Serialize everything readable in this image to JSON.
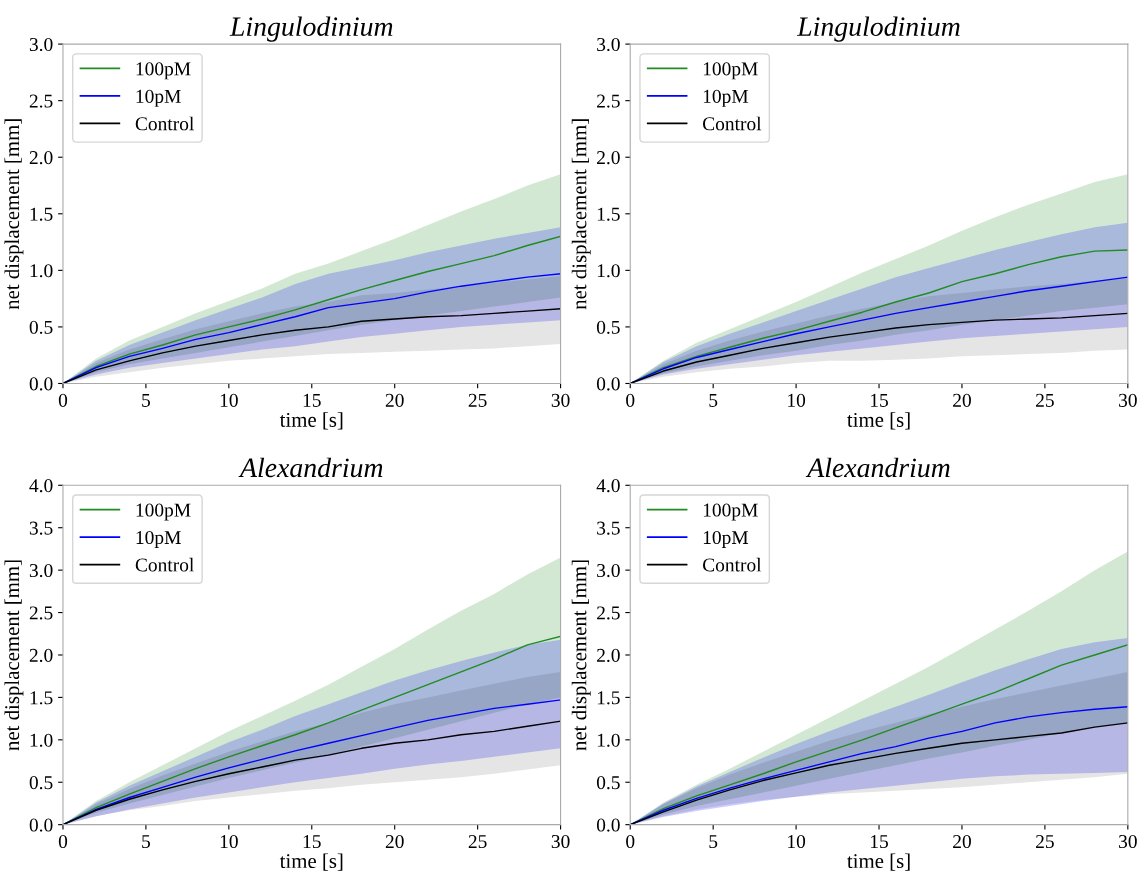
{
  "chart_data": [
    {
      "type": "line",
      "title": "Lingulodinium",
      "xlabel": "time [s]",
      "ylabel": "net displacement [mm]",
      "x": [
        0,
        2,
        4,
        6,
        8,
        10,
        12,
        14,
        16,
        18,
        20,
        22,
        24,
        26,
        28,
        30
      ],
      "xlim": [
        0,
        30
      ],
      "xticks": [
        0,
        5,
        10,
        15,
        20,
        25,
        30
      ],
      "ylim": [
        0,
        3
      ],
      "yticks": [
        {
          "value": 0,
          "label": "0.0"
        },
        0.5,
        {
          "value": 1,
          "label": "1.0"
        },
        1.5,
        {
          "value": 2,
          "label": "2.0"
        },
        2.5,
        {
          "value": 3,
          "label": "3.0"
        }
      ],
      "grid": false,
      "legend": "top left",
      "marker": "none",
      "line_style": "solid",
      "series": [
        {
          "name": "100pM",
          "color": "#228b22",
          "values": [
            0,
            0.15,
            0.26,
            0.34,
            0.43,
            0.5,
            0.57,
            0.65,
            0.74,
            0.83,
            0.91,
            0.99,
            1.06,
            1.13,
            1.22,
            1.3
          ],
          "lower": [
            0,
            0.1,
            0.17,
            0.22,
            0.27,
            0.32,
            0.37,
            0.42,
            0.47,
            0.52,
            0.56,
            0.6,
            0.64,
            0.68,
            0.72,
            0.76
          ],
          "upper": [
            0,
            0.22,
            0.38,
            0.5,
            0.62,
            0.73,
            0.84,
            0.97,
            1.06,
            1.17,
            1.28,
            1.4,
            1.52,
            1.63,
            1.75,
            1.85
          ]
        },
        {
          "name": "10pM",
          "color": "#0000ff",
          "values": [
            0,
            0.14,
            0.24,
            0.31,
            0.39,
            0.45,
            0.52,
            0.59,
            0.67,
            0.71,
            0.75,
            0.81,
            0.86,
            0.9,
            0.94,
            0.97
          ],
          "lower": [
            0,
            0.08,
            0.14,
            0.18,
            0.22,
            0.26,
            0.3,
            0.33,
            0.37,
            0.41,
            0.44,
            0.47,
            0.5,
            0.52,
            0.54,
            0.56
          ],
          "upper": [
            0,
            0.2,
            0.34,
            0.45,
            0.56,
            0.66,
            0.76,
            0.88,
            0.97,
            1.03,
            1.09,
            1.16,
            1.22,
            1.28,
            1.33,
            1.38
          ]
        },
        {
          "name": "Control",
          "color": "#000000",
          "values": [
            0,
            0.12,
            0.2,
            0.27,
            0.33,
            0.38,
            0.43,
            0.47,
            0.5,
            0.55,
            0.57,
            0.59,
            0.6,
            0.62,
            0.64,
            0.66
          ],
          "lower": [
            0,
            0.06,
            0.1,
            0.14,
            0.17,
            0.2,
            0.22,
            0.24,
            0.26,
            0.27,
            0.28,
            0.29,
            0.3,
            0.31,
            0.33,
            0.35
          ],
          "upper": [
            0,
            0.18,
            0.3,
            0.39,
            0.48,
            0.55,
            0.62,
            0.68,
            0.72,
            0.78,
            0.8,
            0.83,
            0.86,
            0.89,
            0.92,
            0.95
          ]
        }
      ]
    },
    {
      "type": "line",
      "title": "Lingulodinium",
      "xlabel": "time [s]",
      "ylabel": "net displacement [mm]",
      "x": [
        0,
        2,
        4,
        6,
        8,
        10,
        12,
        14,
        16,
        18,
        20,
        22,
        24,
        26,
        28,
        30
      ],
      "xlim": [
        0,
        30
      ],
      "xticks": [
        0,
        5,
        10,
        15,
        20,
        25,
        30
      ],
      "ylim": [
        0,
        3
      ],
      "yticks": [
        {
          "value": 0,
          "label": "0.0"
        },
        0.5,
        {
          "value": 1,
          "label": "1.0"
        },
        1.5,
        {
          "value": 2,
          "label": "2.0"
        },
        2.5,
        {
          "value": 3,
          "label": "3.0"
        }
      ],
      "grid": false,
      "legend": "top left",
      "marker": "none",
      "line_style": "solid",
      "series": [
        {
          "name": "100pM",
          "color": "#228b22",
          "values": [
            0,
            0.14,
            0.24,
            0.32,
            0.4,
            0.47,
            0.55,
            0.63,
            0.72,
            0.8,
            0.9,
            0.97,
            1.05,
            1.12,
            1.17,
            1.18
          ],
          "lower": [
            0,
            0.09,
            0.15,
            0.2,
            0.25,
            0.29,
            0.34,
            0.38,
            0.43,
            0.47,
            0.52,
            0.56,
            0.6,
            0.64,
            0.67,
            0.7
          ],
          "upper": [
            0,
            0.2,
            0.36,
            0.48,
            0.6,
            0.72,
            0.85,
            0.98,
            1.1,
            1.22,
            1.35,
            1.47,
            1.58,
            1.68,
            1.78,
            1.85
          ]
        },
        {
          "name": "10pM",
          "color": "#0000ff",
          "values": [
            0,
            0.13,
            0.23,
            0.3,
            0.37,
            0.44,
            0.5,
            0.56,
            0.62,
            0.67,
            0.72,
            0.77,
            0.82,
            0.86,
            0.9,
            0.94
          ],
          "lower": [
            0,
            0.08,
            0.13,
            0.17,
            0.21,
            0.25,
            0.28,
            0.31,
            0.34,
            0.37,
            0.4,
            0.42,
            0.44,
            0.46,
            0.48,
            0.5
          ],
          "upper": [
            0,
            0.19,
            0.33,
            0.44,
            0.54,
            0.64,
            0.74,
            0.84,
            0.94,
            1.02,
            1.1,
            1.18,
            1.25,
            1.32,
            1.38,
            1.42
          ]
        },
        {
          "name": "Control",
          "color": "#000000",
          "values": [
            0,
            0.11,
            0.19,
            0.25,
            0.31,
            0.36,
            0.41,
            0.45,
            0.49,
            0.52,
            0.54,
            0.56,
            0.57,
            0.58,
            0.6,
            0.62
          ],
          "lower": [
            0,
            0.06,
            0.1,
            0.13,
            0.15,
            0.18,
            0.2,
            0.2,
            0.21,
            0.22,
            0.24,
            0.25,
            0.26,
            0.27,
            0.29,
            0.3
          ],
          "upper": [
            0,
            0.17,
            0.29,
            0.38,
            0.46,
            0.53,
            0.6,
            0.66,
            0.72,
            0.77,
            0.8,
            0.83,
            0.86,
            0.88,
            0.91,
            0.93
          ]
        }
      ]
    },
    {
      "type": "line",
      "title": "Alexandrium",
      "xlabel": "time [s]",
      "ylabel": "net displacement [mm]",
      "x": [
        0,
        2,
        4,
        6,
        8,
        10,
        12,
        14,
        16,
        18,
        20,
        22,
        24,
        26,
        28,
        30
      ],
      "xlim": [
        0,
        30
      ],
      "xticks": [
        0,
        5,
        10,
        15,
        20,
        25,
        30
      ],
      "ylim": [
        0,
        4
      ],
      "yticks": [
        {
          "value": 0,
          "label": "0.0"
        },
        0.5,
        {
          "value": 1,
          "label": "1.0"
        },
        1.5,
        {
          "value": 2,
          "label": "2.0"
        },
        2.5,
        {
          "value": 3,
          "label": "3.0"
        },
        3.5,
        {
          "value": 4,
          "label": "4.0"
        }
      ],
      "grid": false,
      "legend": "top left",
      "marker": "none",
      "line_style": "solid",
      "series": [
        {
          "name": "100pM",
          "color": "#228b22",
          "values": [
            0,
            0.2,
            0.36,
            0.51,
            0.66,
            0.8,
            0.93,
            1.06,
            1.2,
            1.35,
            1.5,
            1.65,
            1.8,
            1.95,
            2.12,
            2.22
          ],
          "lower": [
            0,
            0.14,
            0.25,
            0.35,
            0.45,
            0.55,
            0.64,
            0.73,
            0.82,
            0.92,
            1.02,
            1.12,
            1.22,
            1.32,
            1.42,
            1.5
          ],
          "upper": [
            0,
            0.28,
            0.5,
            0.7,
            0.9,
            1.1,
            1.28,
            1.46,
            1.65,
            1.86,
            2.07,
            2.3,
            2.52,
            2.72,
            2.95,
            3.15
          ]
        },
        {
          "name": "10pM",
          "color": "#0000ff",
          "values": [
            0,
            0.18,
            0.32,
            0.44,
            0.56,
            0.67,
            0.77,
            0.87,
            0.96,
            1.05,
            1.14,
            1.23,
            1.3,
            1.37,
            1.42,
            1.47
          ],
          "lower": [
            0,
            0.1,
            0.18,
            0.25,
            0.32,
            0.38,
            0.44,
            0.5,
            0.55,
            0.6,
            0.66,
            0.71,
            0.75,
            0.8,
            0.85,
            0.9
          ],
          "upper": [
            0,
            0.26,
            0.46,
            0.63,
            0.8,
            0.97,
            1.12,
            1.28,
            1.42,
            1.56,
            1.7,
            1.82,
            1.93,
            2.03,
            2.12,
            2.18
          ]
        },
        {
          "name": "Control",
          "color": "#000000",
          "values": [
            0,
            0.17,
            0.3,
            0.41,
            0.51,
            0.6,
            0.68,
            0.76,
            0.82,
            0.9,
            0.96,
            1.0,
            1.06,
            1.1,
            1.16,
            1.22
          ],
          "lower": [
            0,
            0.1,
            0.17,
            0.22,
            0.28,
            0.32,
            0.36,
            0.4,
            0.43,
            0.47,
            0.5,
            0.53,
            0.56,
            0.6,
            0.65,
            0.7
          ],
          "upper": [
            0,
            0.24,
            0.42,
            0.58,
            0.72,
            0.86,
            0.98,
            1.1,
            1.2,
            1.32,
            1.42,
            1.5,
            1.58,
            1.66,
            1.74,
            1.8
          ]
        }
      ]
    },
    {
      "type": "line",
      "title": "Alexandrium",
      "xlabel": "time [s]",
      "ylabel": "net displacement [mm]",
      "x": [
        0,
        2,
        4,
        6,
        8,
        10,
        12,
        14,
        16,
        18,
        20,
        22,
        24,
        26,
        28,
        30
      ],
      "xlim": [
        0,
        30
      ],
      "xticks": [
        0,
        5,
        10,
        15,
        20,
        25,
        30
      ],
      "ylim": [
        0,
        4
      ],
      "yticks": [
        {
          "value": 0,
          "label": "0.0"
        },
        0.5,
        {
          "value": 1,
          "label": "1.0"
        },
        1.5,
        {
          "value": 2,
          "label": "2.0"
        },
        2.5,
        {
          "value": 3,
          "label": "3.0"
        },
        3.5,
        {
          "value": 4,
          "label": "4.0"
        }
      ],
      "grid": false,
      "legend": "top left",
      "marker": "none",
      "line_style": "solid",
      "series": [
        {
          "name": "100pM",
          "color": "#228b22",
          "values": [
            0,
            0.19,
            0.34,
            0.47,
            0.6,
            0.74,
            0.87,
            1.0,
            1.14,
            1.28,
            1.42,
            1.56,
            1.72,
            1.88,
            2.0,
            2.12
          ],
          "lower": [
            0,
            0.12,
            0.22,
            0.3,
            0.38,
            0.46,
            0.54,
            0.62,
            0.7,
            0.78,
            0.85,
            0.93,
            1.0,
            1.08,
            1.15,
            1.2
          ],
          "upper": [
            0,
            0.26,
            0.47,
            0.66,
            0.86,
            1.06,
            1.26,
            1.46,
            1.66,
            1.86,
            2.08,
            2.3,
            2.52,
            2.75,
            3.0,
            3.22
          ]
        },
        {
          "name": "10pM",
          "color": "#0000ff",
          "values": [
            0,
            0.17,
            0.31,
            0.43,
            0.54,
            0.64,
            0.74,
            0.84,
            0.92,
            1.02,
            1.1,
            1.2,
            1.27,
            1.32,
            1.36,
            1.39
          ],
          "lower": [
            0,
            0.09,
            0.16,
            0.22,
            0.28,
            0.33,
            0.38,
            0.42,
            0.46,
            0.5,
            0.54,
            0.57,
            0.59,
            0.6,
            0.61,
            0.62
          ],
          "upper": [
            0,
            0.25,
            0.45,
            0.62,
            0.79,
            0.95,
            1.1,
            1.25,
            1.39,
            1.53,
            1.68,
            1.82,
            1.95,
            2.07,
            2.15,
            2.2
          ]
        },
        {
          "name": "Control",
          "color": "#000000",
          "values": [
            0,
            0.15,
            0.29,
            0.41,
            0.52,
            0.61,
            0.7,
            0.77,
            0.84,
            0.9,
            0.96,
            1.0,
            1.04,
            1.08,
            1.15,
            1.2
          ],
          "lower": [
            0,
            0.1,
            0.18,
            0.24,
            0.29,
            0.33,
            0.36,
            0.38,
            0.4,
            0.42,
            0.44,
            0.47,
            0.5,
            0.53,
            0.56,
            0.6
          ],
          "upper": [
            0,
            0.24,
            0.43,
            0.59,
            0.73,
            0.86,
            0.99,
            1.1,
            1.2,
            1.3,
            1.39,
            1.48,
            1.56,
            1.64,
            1.72,
            1.8
          ]
        }
      ]
    }
  ]
}
